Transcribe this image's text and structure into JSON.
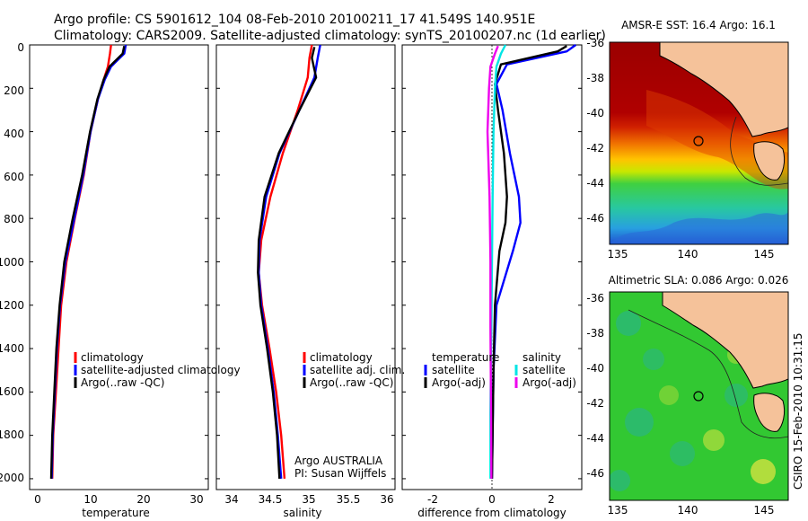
{
  "header": {
    "line1": "Argo profile: CS 5901612_104 08-Feb-2010 20100211_17 41.549S 140.951E",
    "line2": "Climatology: CARS2009. Satellite-adjusted climatology: synTS_20100207.nc (1d earlier)"
  },
  "credit": "CSIRO 15-Feb-2010 10:31:15",
  "colors": {
    "climatology": "#ff0000",
    "satellite": "#0000ff",
    "argo": "#000000",
    "cyan": "#00e5e5",
    "magenta": "#ee00ee"
  },
  "panels": {
    "temperature": {
      "xlabel": "temperature",
      "xticks": [
        "0",
        "10",
        "20",
        "30"
      ],
      "legend": [
        "climatology",
        "satellite-adjusted climatology",
        "Argo(..raw -QC)"
      ]
    },
    "salinity": {
      "xlabel": "salinity",
      "xticks": [
        "34",
        "34.5",
        "35",
        "35.5",
        "36"
      ],
      "legend": [
        "climatology",
        "satellite adj. clim.",
        "Argo(..raw -QC)"
      ],
      "note1": "Argo AUSTRALIA",
      "note2": "PI: Susan Wijffels"
    },
    "difference": {
      "xlabel": "difference from climatology",
      "xticks": [
        "-2",
        "0",
        "2"
      ],
      "legend_head_left": "temperature",
      "legend_head_right": "salinity",
      "legend_left": [
        "satellite",
        "Argo(-adj)"
      ],
      "legend_right": [
        "satellite",
        "Argo(-adj)"
      ]
    }
  },
  "depth_ticks": [
    "0",
    "200",
    "400",
    "600",
    "800",
    "1000",
    "1200",
    "1400",
    "1600",
    "1800",
    "2000"
  ],
  "maps": {
    "sst": {
      "title": "AMSR-E SST: 16.4 Argo: 16.1",
      "yticks": [
        "-36",
        "-38",
        "-40",
        "-42",
        "-44",
        "-46"
      ],
      "xticks": [
        "135",
        "140",
        "145"
      ],
      "marker": {
        "lon": 140.95,
        "lat": -41.55
      }
    },
    "sla": {
      "title": "Altimetric SLA: 0.086 Argo: 0.026",
      "yticks": [
        "-36",
        "-38",
        "-40",
        "-42",
        "-44",
        "-46"
      ],
      "xticks": [
        "135",
        "140",
        "145"
      ],
      "marker": {
        "lon": 140.95,
        "lat": -41.55
      }
    }
  },
  "chart_data": [
    {
      "type": "line",
      "title": "temperature",
      "xlabel": "temperature",
      "ylabel": "",
      "xlim": [
        -2,
        32
      ],
      "ylim": [
        2050,
        0
      ],
      "series": [
        {
          "name": "climatology",
          "x": [
            13.5,
            13.3,
            12.9,
            12.1,
            11,
            9.6,
            8.3,
            6.6,
            5,
            4,
            3.5,
            3,
            2.5,
            2.3
          ],
          "y": [
            0,
            40,
            100,
            160,
            250,
            400,
            600,
            800,
            1000,
            1200,
            1400,
            1600,
            1800,
            2000
          ]
        },
        {
          "name": "satellite-adjusted climatology",
          "x": [
            16.3,
            16,
            13.5,
            12.3,
            11,
            9.6,
            8.2,
            6.5,
            4.8,
            3.8,
            3.2,
            2.8,
            2.4,
            2.2
          ],
          "y": [
            0,
            40,
            100,
            160,
            250,
            400,
            600,
            800,
            1000,
            1200,
            1400,
            1600,
            1800,
            2000
          ]
        },
        {
          "name": "Argo(..raw -QC)",
          "x": [
            16,
            15.7,
            13.2,
            12.1,
            10.9,
            9.5,
            8,
            6.2,
            4.6,
            3.7,
            3.1,
            2.7,
            2.3,
            2.1
          ],
          "y": [
            5,
            40,
            100,
            160,
            250,
            400,
            600,
            800,
            1000,
            1200,
            1400,
            1600,
            1800,
            2000
          ]
        }
      ]
    },
    {
      "type": "line",
      "title": "salinity",
      "xlabel": "salinity",
      "ylabel": "",
      "xlim": [
        33.9,
        36.05
      ],
      "ylim": [
        2050,
        0
      ],
      "series": [
        {
          "name": "climatology",
          "x": [
            35.05,
            35.02,
            35.0,
            34.88,
            34.7,
            34.55,
            34.44,
            34.41,
            34.45,
            34.54,
            34.62,
            34.68,
            34.72
          ],
          "y": [
            0,
            60,
            150,
            300,
            500,
            700,
            900,
            1050,
            1200,
            1400,
            1600,
            1800,
            2000
          ]
        },
        {
          "name": "satellite adj. clim.",
          "x": [
            35.15,
            35.12,
            35.08,
            34.9,
            34.66,
            34.5,
            34.42,
            34.41,
            34.44,
            34.52,
            34.59,
            34.64,
            34.68
          ],
          "y": [
            0,
            60,
            150,
            300,
            500,
            700,
            900,
            1050,
            1200,
            1400,
            1600,
            1800,
            2000
          ]
        },
        {
          "name": "Argo(..raw -QC)",
          "x": [
            35.08,
            35.05,
            35.1,
            34.9,
            34.65,
            34.48,
            34.41,
            34.4,
            34.43,
            34.51,
            34.58,
            34.63,
            34.66
          ],
          "y": [
            10,
            60,
            150,
            300,
            500,
            700,
            900,
            1050,
            1200,
            1400,
            1600,
            1800,
            2000
          ]
        }
      ]
    },
    {
      "type": "line",
      "title": "difference from climatology",
      "xlabel": "difference from climatology",
      "ylabel": "",
      "xlim": [
        -3,
        3
      ],
      "ylim": [
        2050,
        0
      ],
      "series": [
        {
          "name": "temperature satellite",
          "x": [
            2.8,
            2.5,
            0.5,
            0.15,
            0.35,
            0.6,
            0.9,
            0.95,
            0.7,
            0.15,
            0.05,
            0.0
          ],
          "y": [
            0,
            30,
            90,
            180,
            300,
            500,
            700,
            820,
            950,
            1200,
            1500,
            2000
          ]
        },
        {
          "name": "temperature Argo(-adj)",
          "x": [
            2.5,
            2.2,
            0.3,
            0.1,
            0.2,
            0.4,
            0.5,
            0.45,
            0.25,
            0.1,
            0.05,
            0.0
          ],
          "y": [
            5,
            30,
            90,
            180,
            300,
            500,
            700,
            820,
            950,
            1200,
            1500,
            2000
          ]
        },
        {
          "name": "salinity satellite",
          "x": [
            0.45,
            0.3,
            0.15,
            0.1,
            0.05,
            0.02,
            0.0,
            -0.02,
            -0.05,
            -0.05
          ],
          "y": [
            0,
            40,
            100,
            200,
            400,
            700,
            1000,
            1300,
            1700,
            2000
          ]
        },
        {
          "name": "salinity Argo(-adj)",
          "x": [
            0.2,
            0.1,
            -0.05,
            -0.1,
            -0.15,
            -0.08,
            -0.05,
            -0.05,
            -0.03,
            -0.02
          ],
          "y": [
            5,
            40,
            100,
            200,
            400,
            700,
            1000,
            1300,
            1700,
            2000
          ]
        }
      ]
    }
  ]
}
